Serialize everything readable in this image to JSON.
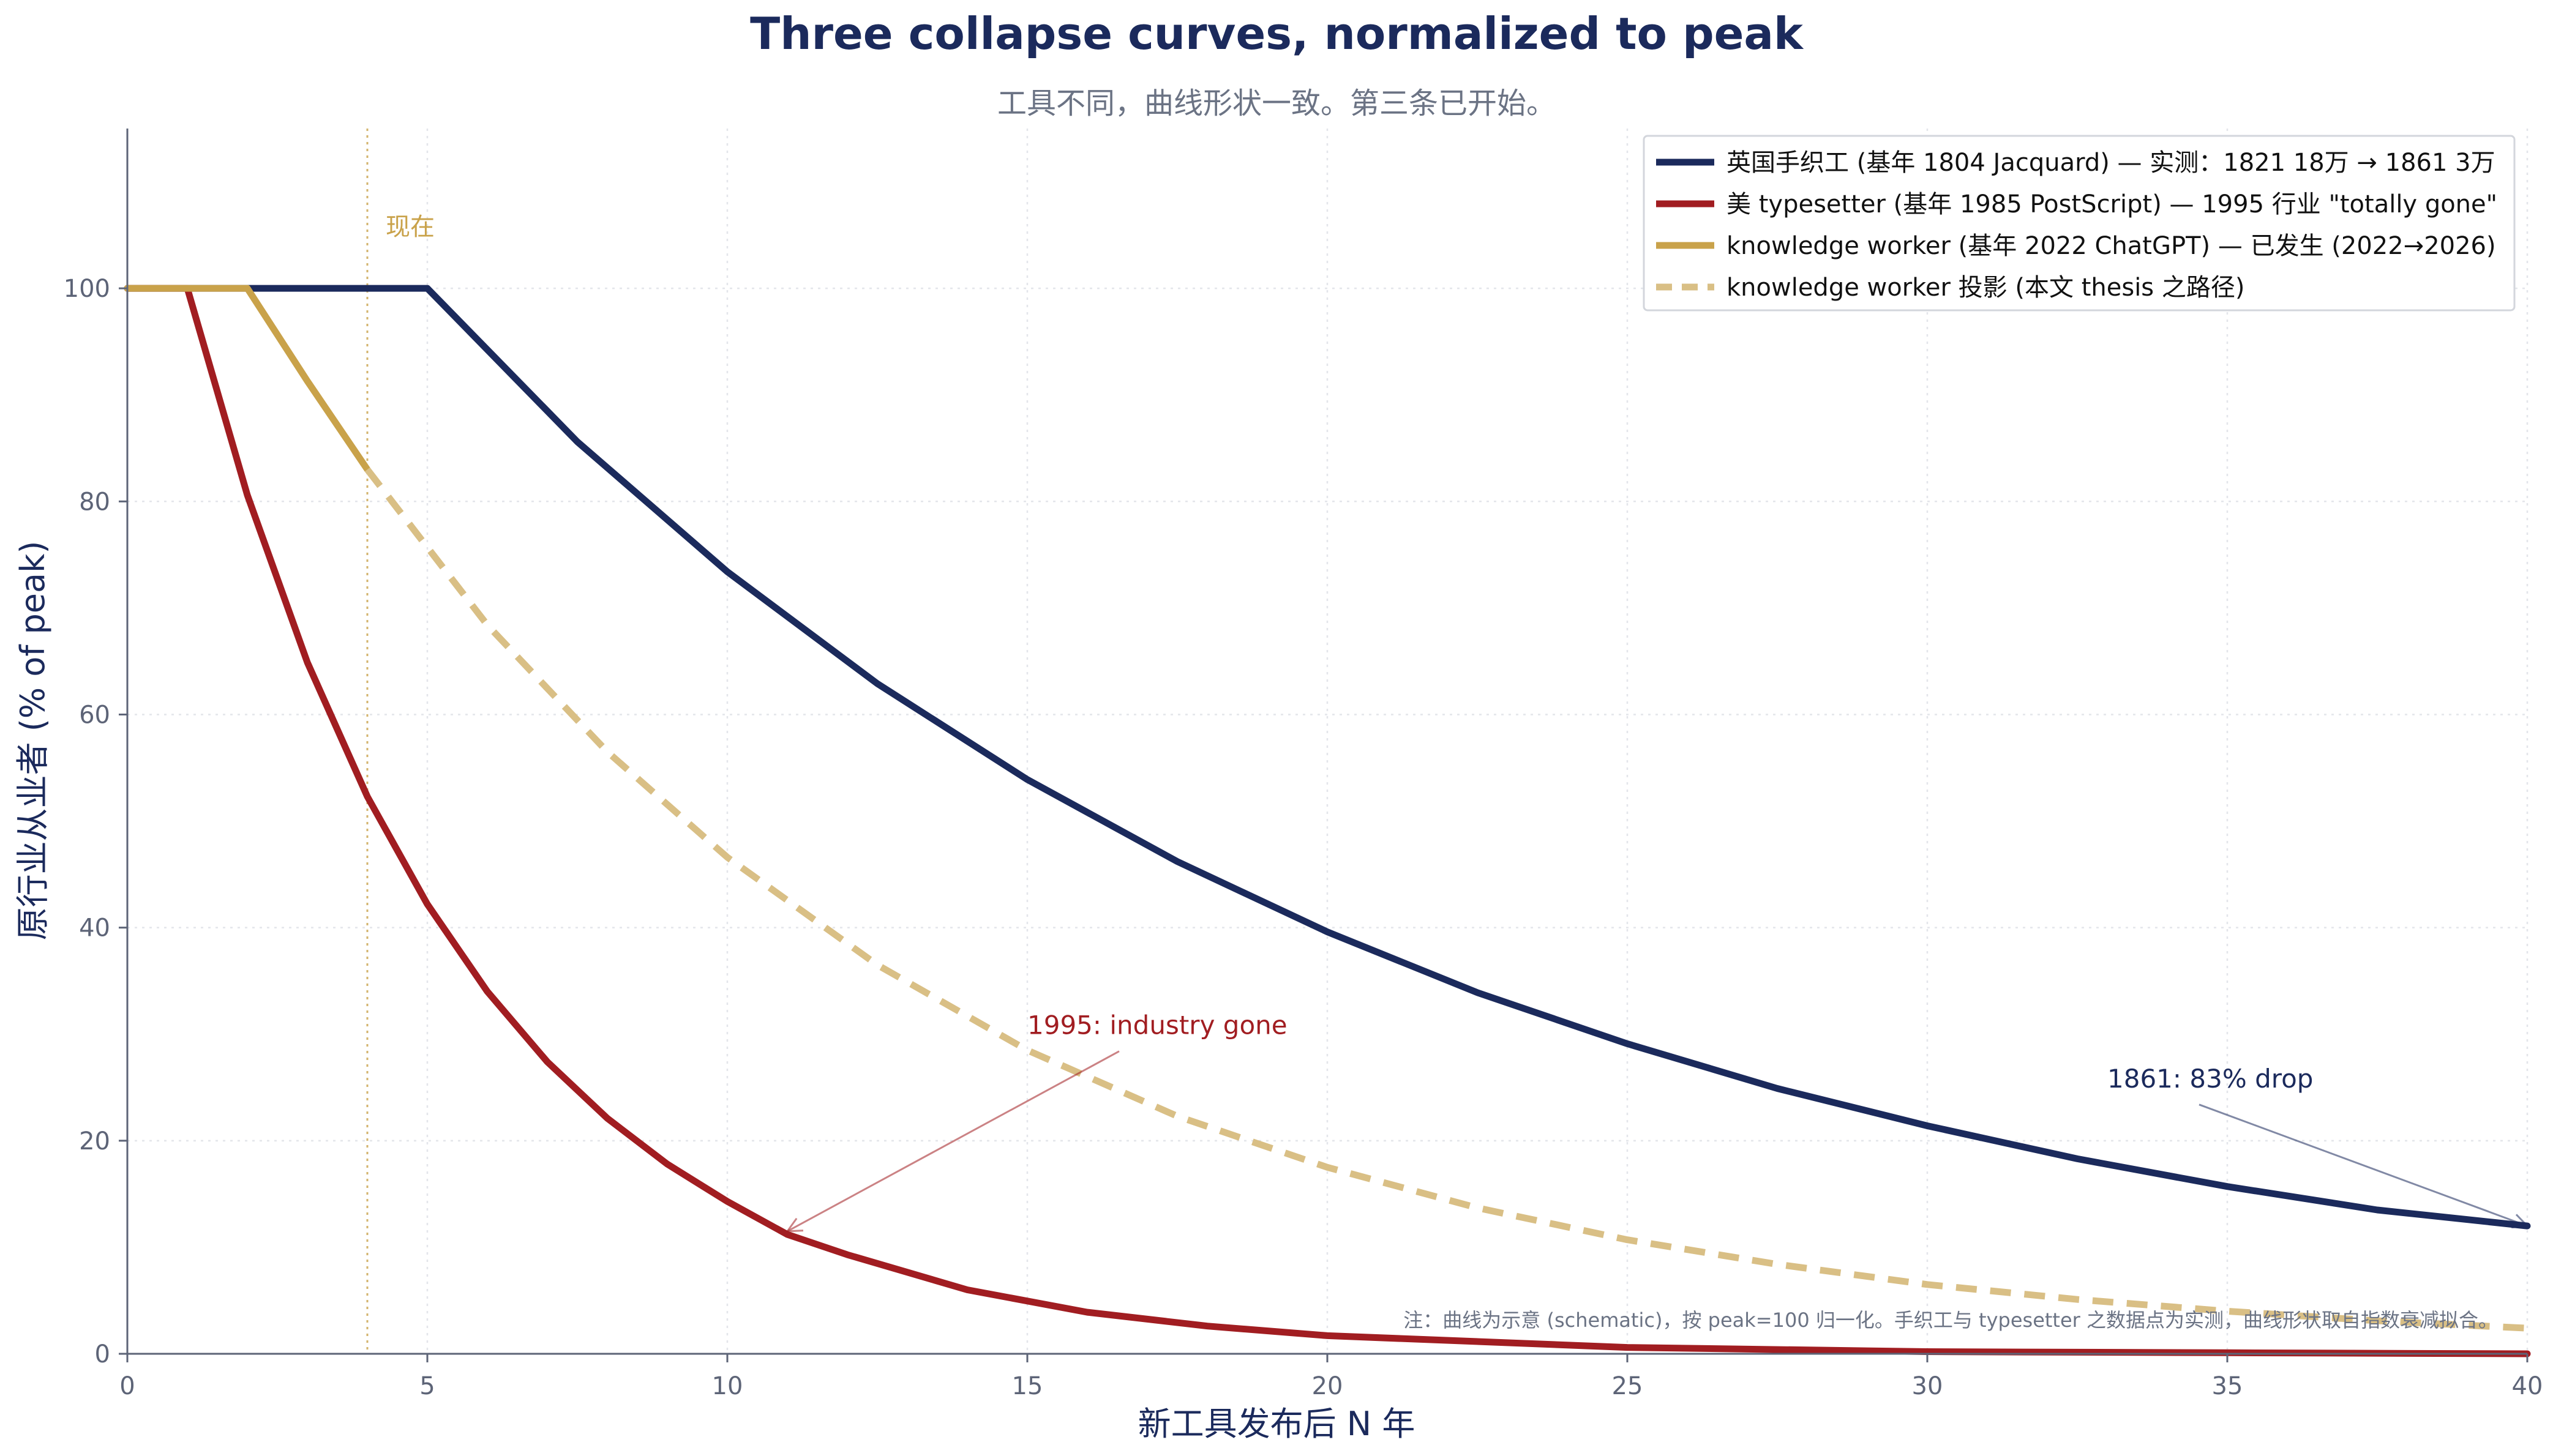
{
  "chart_data": {
    "type": "line",
    "title": "Three collapse curves, normalized to peak",
    "subtitle": "工具不同，曲线形状一致。第三条已开始。",
    "xlabel": "新工具发布后 N 年",
    "ylabel": "原行业从业者 (% of peak)",
    "xlim": [
      0,
      40
    ],
    "ylim": [
      0,
      115
    ],
    "xticks": [
      0,
      5,
      10,
      15,
      20,
      25,
      30,
      35,
      40
    ],
    "yticks": [
      0,
      20,
      40,
      60,
      80,
      100
    ],
    "grid": true,
    "legend_position": "top-right",
    "vline": {
      "x": 4,
      "label": "现在",
      "color": "#c9a24a"
    },
    "series": [
      {
        "name": "英国手织工 (基年 1804 Jacquard) — 实测：1821 18万 → 1861 3万",
        "color": "#1b2a5c",
        "style": "solid",
        "x": [
          0,
          5,
          7.5,
          10,
          12.5,
          15,
          17.5,
          20,
          22.5,
          25,
          27.5,
          30,
          32.5,
          35,
          37.5,
          40
        ],
        "y": [
          100,
          100,
          85.6,
          73.4,
          62.9,
          53.9,
          46.2,
          39.6,
          33.9,
          29.1,
          24.9,
          21.4,
          18.3,
          15.7,
          13.5,
          12
        ]
      },
      {
        "name": "美 typesetter (基年 1985 PostScript) — 1995 行业 \"totally gone\"",
        "color": "#a11d21",
        "style": "solid",
        "x": [
          0,
          1,
          2,
          3,
          4,
          5,
          6,
          7,
          8,
          9,
          10,
          11,
          12,
          14,
          16,
          18,
          20,
          25,
          30,
          35,
          40
        ],
        "y": [
          100,
          100,
          80.6,
          64.9,
          52.3,
          42.2,
          34,
          27.4,
          22.1,
          17.8,
          14.3,
          11.2,
          9.3,
          6,
          3.9,
          2.6,
          1.7,
          0.6,
          0.2,
          0.1,
          0
        ]
      },
      {
        "name": "knowledge worker (基年 2022 ChatGPT) — 已发生 (2022→2026)",
        "color": "#c9a24a",
        "style": "solid",
        "x": [
          0,
          2,
          3,
          4
        ],
        "y": [
          100,
          100,
          91.3,
          83
        ]
      },
      {
        "name": "knowledge worker 投影 (本文 thesis 之路径)",
        "color": "#d9bf85",
        "style": "dashed",
        "x": [
          4,
          6,
          8,
          10,
          12.5,
          15,
          17.5,
          20,
          22.5,
          25,
          27.5,
          30,
          32.5,
          35,
          37.5,
          40
        ],
        "y": [
          83,
          68.4,
          56.5,
          46.6,
          36.5,
          28.5,
          22.3,
          17.5,
          13.7,
          10.7,
          8.4,
          6.5,
          5.1,
          4,
          3.1,
          2.4
        ]
      }
    ],
    "annotations": [
      {
        "text": "1995: industry gone",
        "text_x": 15,
        "text_y": 30,
        "point_x": 11,
        "point_y": 11.5,
        "color": "#a11d21"
      },
      {
        "text": "1861: 83% drop",
        "text_x": 33,
        "text_y": 25,
        "point_x": 40,
        "point_y": 12,
        "color": "#1b2a5c"
      }
    ],
    "footnote": "注：曲线为示意 (schematic)，按 peak=100 归一化。手织工与 typesetter 之数据点为实测，曲线形状取自指数衰减拟合。"
  }
}
